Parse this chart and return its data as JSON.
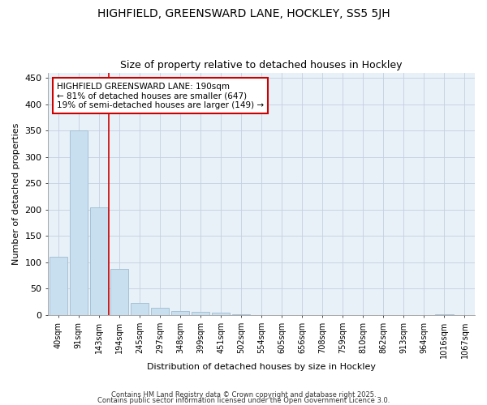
{
  "title": "HIGHFIELD, GREENSWARD LANE, HOCKLEY, SS5 5JH",
  "subtitle": "Size of property relative to detached houses in Hockley",
  "xlabel": "Distribution of detached houses by size in Hockley",
  "ylabel": "Number of detached properties",
  "bar_color": "#c8dff0",
  "bar_edge_color": "#a0bdd0",
  "plot_bg_color": "#e8f0f8",
  "fig_bg_color": "#ffffff",
  "grid_color": "#c5d0e0",
  "vline_color": "#cc0000",
  "annotation_text": "HIGHFIELD GREENSWARD LANE: 190sqm\n← 81% of detached houses are smaller (647)\n19% of semi-detached houses are larger (149) →",
  "annotation_box_color": "#cc0000",
  "bins": [
    "40sqm",
    "91sqm",
    "143sqm",
    "194sqm",
    "245sqm",
    "297sqm",
    "348sqm",
    "399sqm",
    "451sqm",
    "502sqm",
    "554sqm",
    "605sqm",
    "656sqm",
    "708sqm",
    "759sqm",
    "810sqm",
    "862sqm",
    "913sqm",
    "964sqm",
    "1016sqm",
    "1067sqm"
  ],
  "values": [
    110,
    350,
    204,
    88,
    23,
    14,
    8,
    6,
    5,
    2,
    0,
    0,
    0,
    0,
    0,
    0,
    0,
    0,
    0,
    2,
    0
  ],
  "ylim": [
    0,
    460
  ],
  "yticks": [
    0,
    50,
    100,
    150,
    200,
    250,
    300,
    350,
    400,
    450
  ],
  "footer_line1": "Contains HM Land Registry data © Crown copyright and database right 2025.",
  "footer_line2": "Contains public sector information licensed under the Open Government Licence 3.0."
}
